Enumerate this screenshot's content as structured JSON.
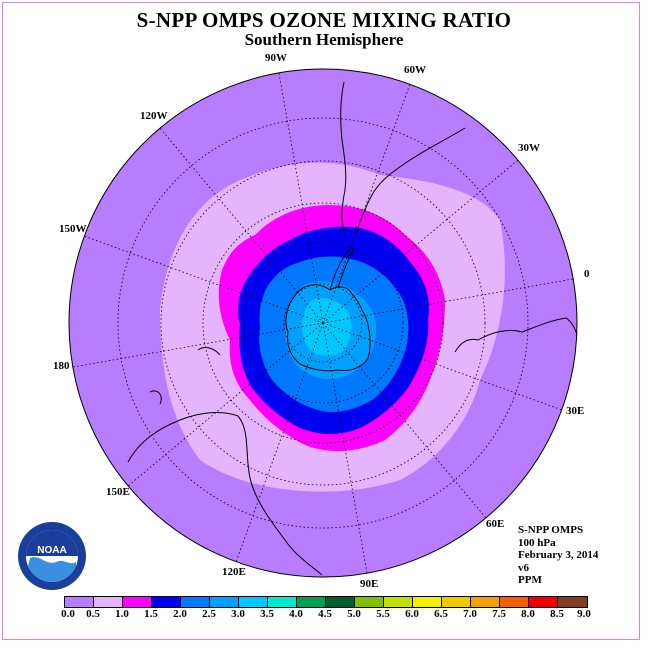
{
  "title": "S-NPP OMPS OZONE MIXING RATIO",
  "subtitle": "Southern Hemisphere",
  "longitude_labels": [
    "90W",
    "60W",
    "30W",
    "0",
    "30E",
    "60E",
    "90E",
    "120E",
    "150E",
    "180",
    "150W",
    "120W"
  ],
  "info": {
    "instrument": "S-NPP OMPS",
    "pressure": "100 hPa",
    "date": "February 3, 2014",
    "version": "v6",
    "units": "PPM"
  },
  "logo_text": "NOAA",
  "colorbar": {
    "ticks": [
      "0.0",
      "0.5",
      "1.0",
      "1.5",
      "2.0",
      "2.5",
      "3.0",
      "3.5",
      "4.0",
      "4.5",
      "5.0",
      "5.5",
      "6.0",
      "6.5",
      "7.0",
      "7.5",
      "8.0",
      "8.5",
      "9.0"
    ],
    "colors": [
      "#b87cff",
      "#e4b4ff",
      "#ff00ff",
      "#0000f0",
      "#0078ff",
      "#00a0ff",
      "#00c8ff",
      "#00e8d0",
      "#00a050",
      "#006030",
      "#80c000",
      "#c0e000",
      "#f0f000",
      "#f0c800",
      "#f0a000",
      "#f06000",
      "#f00000",
      "#804020"
    ]
  }
}
